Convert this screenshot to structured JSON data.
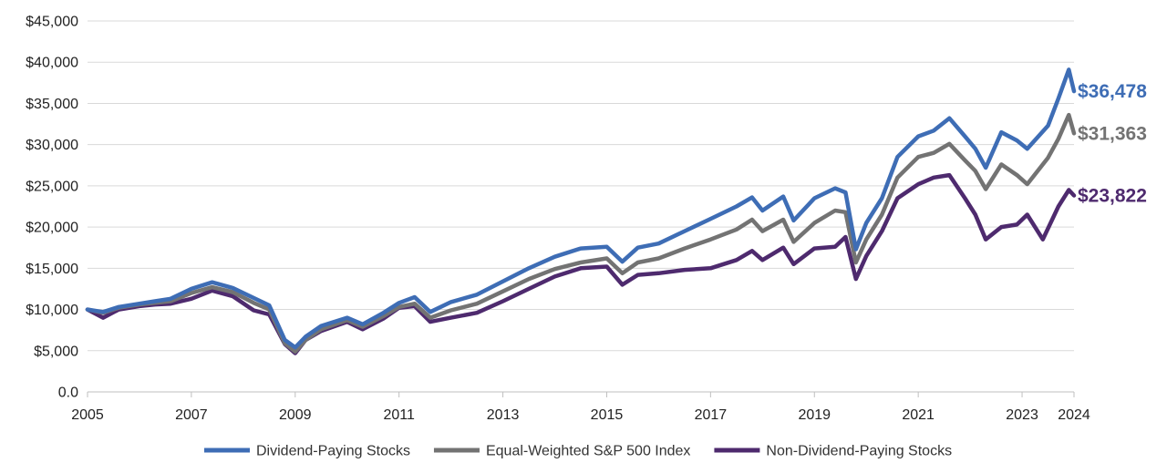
{
  "chart_data": {
    "type": "line",
    "title": "",
    "xlabel": "",
    "ylabel": "",
    "ylim": [
      0,
      45000
    ],
    "xlim": [
      2005,
      2024
    ],
    "y_ticks": [
      0,
      5000,
      10000,
      15000,
      20000,
      25000,
      30000,
      35000,
      40000,
      45000
    ],
    "y_tick_labels": [
      "0.0",
      "$5,000",
      "$10,000",
      "$15,000",
      "$20,000",
      "$25,000",
      "$30,000",
      "$35,000",
      "$40,000",
      "$45,000"
    ],
    "x_ticks": [
      2005,
      2007,
      2009,
      2011,
      2013,
      2015,
      2017,
      2019,
      2021,
      2023,
      2024
    ],
    "x_tick_labels": [
      "2005",
      "2007",
      "2009",
      "2011",
      "2013",
      "2015",
      "2017",
      "2019",
      "2021",
      "2023",
      "2024"
    ],
    "grid": "horizontal",
    "legend_position": "bottom",
    "series": [
      {
        "name": "Dividend-Paying Stocks",
        "color": "#3e6db5",
        "end_label": "$36,478",
        "points": [
          [
            2005.0,
            10000
          ],
          [
            2005.3,
            9700
          ],
          [
            2005.6,
            10300
          ],
          [
            2006.0,
            10700
          ],
          [
            2006.3,
            11000
          ],
          [
            2006.6,
            11300
          ],
          [
            2007.0,
            12500
          ],
          [
            2007.4,
            13300
          ],
          [
            2007.8,
            12600
          ],
          [
            2008.2,
            11400
          ],
          [
            2008.5,
            10500
          ],
          [
            2008.8,
            6300
          ],
          [
            2009.0,
            5400
          ],
          [
            2009.2,
            6700
          ],
          [
            2009.5,
            8000
          ],
          [
            2010.0,
            9000
          ],
          [
            2010.3,
            8200
          ],
          [
            2010.7,
            9600
          ],
          [
            2011.0,
            10800
          ],
          [
            2011.3,
            11500
          ],
          [
            2011.6,
            9700
          ],
          [
            2012.0,
            10900
          ],
          [
            2012.5,
            11800
          ],
          [
            2013.0,
            13400
          ],
          [
            2013.5,
            15000
          ],
          [
            2014.0,
            16400
          ],
          [
            2014.5,
            17400
          ],
          [
            2015.0,
            17600
          ],
          [
            2015.3,
            15800
          ],
          [
            2015.6,
            17500
          ],
          [
            2016.0,
            18000
          ],
          [
            2016.5,
            19500
          ],
          [
            2017.0,
            21000
          ],
          [
            2017.5,
            22500
          ],
          [
            2017.8,
            23600
          ],
          [
            2018.0,
            22000
          ],
          [
            2018.4,
            23700
          ],
          [
            2018.6,
            20800
          ],
          [
            2019.0,
            23500
          ],
          [
            2019.4,
            24700
          ],
          [
            2019.6,
            24200
          ],
          [
            2019.8,
            17300
          ],
          [
            2020.0,
            20500
          ],
          [
            2020.3,
            23500
          ],
          [
            2020.6,
            28500
          ],
          [
            2021.0,
            31000
          ],
          [
            2021.3,
            31700
          ],
          [
            2021.6,
            33200
          ],
          [
            2021.9,
            31000
          ],
          [
            2022.1,
            29500
          ],
          [
            2022.3,
            27200
          ],
          [
            2022.6,
            31500
          ],
          [
            2022.9,
            30500
          ],
          [
            2023.1,
            29500
          ],
          [
            2023.5,
            32300
          ],
          [
            2023.7,
            35600
          ],
          [
            2023.9,
            39100
          ],
          [
            2024.0,
            36478
          ]
        ]
      },
      {
        "name": "Equal-Weighted S&P 500 Index",
        "color": "#737373",
        "end_label": "$31,363",
        "points": [
          [
            2005.0,
            10000
          ],
          [
            2005.3,
            9600
          ],
          [
            2005.6,
            10200
          ],
          [
            2006.0,
            10600
          ],
          [
            2006.3,
            10800
          ],
          [
            2006.6,
            11000
          ],
          [
            2007.0,
            12000
          ],
          [
            2007.4,
            12700
          ],
          [
            2007.8,
            12100
          ],
          [
            2008.2,
            10800
          ],
          [
            2008.5,
            10000
          ],
          [
            2008.8,
            5900
          ],
          [
            2009.0,
            4900
          ],
          [
            2009.2,
            6300
          ],
          [
            2009.5,
            7600
          ],
          [
            2010.0,
            8700
          ],
          [
            2010.3,
            7900
          ],
          [
            2010.7,
            9200
          ],
          [
            2011.0,
            10300
          ],
          [
            2011.3,
            10700
          ],
          [
            2011.6,
            9000
          ],
          [
            2012.0,
            9900
          ],
          [
            2012.5,
            10700
          ],
          [
            2013.0,
            12200
          ],
          [
            2013.5,
            13700
          ],
          [
            2014.0,
            14900
          ],
          [
            2014.5,
            15700
          ],
          [
            2015.0,
            16200
          ],
          [
            2015.3,
            14400
          ],
          [
            2015.6,
            15700
          ],
          [
            2016.0,
            16200
          ],
          [
            2016.5,
            17400
          ],
          [
            2017.0,
            18500
          ],
          [
            2017.5,
            19700
          ],
          [
            2017.8,
            20900
          ],
          [
            2018.0,
            19500
          ],
          [
            2018.4,
            20900
          ],
          [
            2018.6,
            18200
          ],
          [
            2019.0,
            20500
          ],
          [
            2019.4,
            22000
          ],
          [
            2019.6,
            21800
          ],
          [
            2019.8,
            15700
          ],
          [
            2020.0,
            18500
          ],
          [
            2020.3,
            21500
          ],
          [
            2020.6,
            26000
          ],
          [
            2021.0,
            28500
          ],
          [
            2021.3,
            29000
          ],
          [
            2021.6,
            30100
          ],
          [
            2021.9,
            28100
          ],
          [
            2022.1,
            26800
          ],
          [
            2022.3,
            24600
          ],
          [
            2022.6,
            27600
          ],
          [
            2022.9,
            26300
          ],
          [
            2023.1,
            25200
          ],
          [
            2023.5,
            28400
          ],
          [
            2023.7,
            30700
          ],
          [
            2023.9,
            33600
          ],
          [
            2024.0,
            31363
          ]
        ]
      },
      {
        "name": "Non-Dividend-Paying Stocks",
        "color": "#4e2a6e",
        "end_label": "$23,822",
        "points": [
          [
            2005.0,
            10000
          ],
          [
            2005.3,
            9000
          ],
          [
            2005.6,
            10000
          ],
          [
            2006.0,
            10400
          ],
          [
            2006.3,
            10600
          ],
          [
            2006.6,
            10700
          ],
          [
            2007.0,
            11300
          ],
          [
            2007.4,
            12300
          ],
          [
            2007.8,
            11600
          ],
          [
            2008.2,
            9900
          ],
          [
            2008.5,
            9400
          ],
          [
            2008.8,
            5800
          ],
          [
            2009.0,
            4700
          ],
          [
            2009.2,
            6300
          ],
          [
            2009.5,
            7400
          ],
          [
            2010.0,
            8500
          ],
          [
            2010.3,
            7600
          ],
          [
            2010.7,
            8900
          ],
          [
            2011.0,
            10200
          ],
          [
            2011.3,
            10400
          ],
          [
            2011.6,
            8500
          ],
          [
            2012.0,
            9000
          ],
          [
            2012.5,
            9600
          ],
          [
            2013.0,
            11000
          ],
          [
            2013.5,
            12500
          ],
          [
            2014.0,
            14000
          ],
          [
            2014.5,
            15000
          ],
          [
            2015.0,
            15200
          ],
          [
            2015.3,
            13000
          ],
          [
            2015.6,
            14200
          ],
          [
            2016.0,
            14400
          ],
          [
            2016.5,
            14800
          ],
          [
            2017.0,
            15000
          ],
          [
            2017.5,
            16000
          ],
          [
            2017.8,
            17100
          ],
          [
            2018.0,
            16000
          ],
          [
            2018.4,
            17500
          ],
          [
            2018.6,
            15500
          ],
          [
            2019.0,
            17400
          ],
          [
            2019.4,
            17600
          ],
          [
            2019.6,
            18800
          ],
          [
            2019.8,
            13700
          ],
          [
            2020.0,
            16500
          ],
          [
            2020.3,
            19500
          ],
          [
            2020.6,
            23500
          ],
          [
            2021.0,
            25200
          ],
          [
            2021.3,
            26000
          ],
          [
            2021.6,
            26300
          ],
          [
            2021.9,
            23500
          ],
          [
            2022.1,
            21500
          ],
          [
            2022.3,
            18500
          ],
          [
            2022.6,
            20000
          ],
          [
            2022.9,
            20300
          ],
          [
            2023.1,
            21500
          ],
          [
            2023.4,
            18500
          ],
          [
            2023.7,
            22500
          ],
          [
            2023.9,
            24500
          ],
          [
            2024.0,
            23822
          ]
        ]
      }
    ]
  }
}
